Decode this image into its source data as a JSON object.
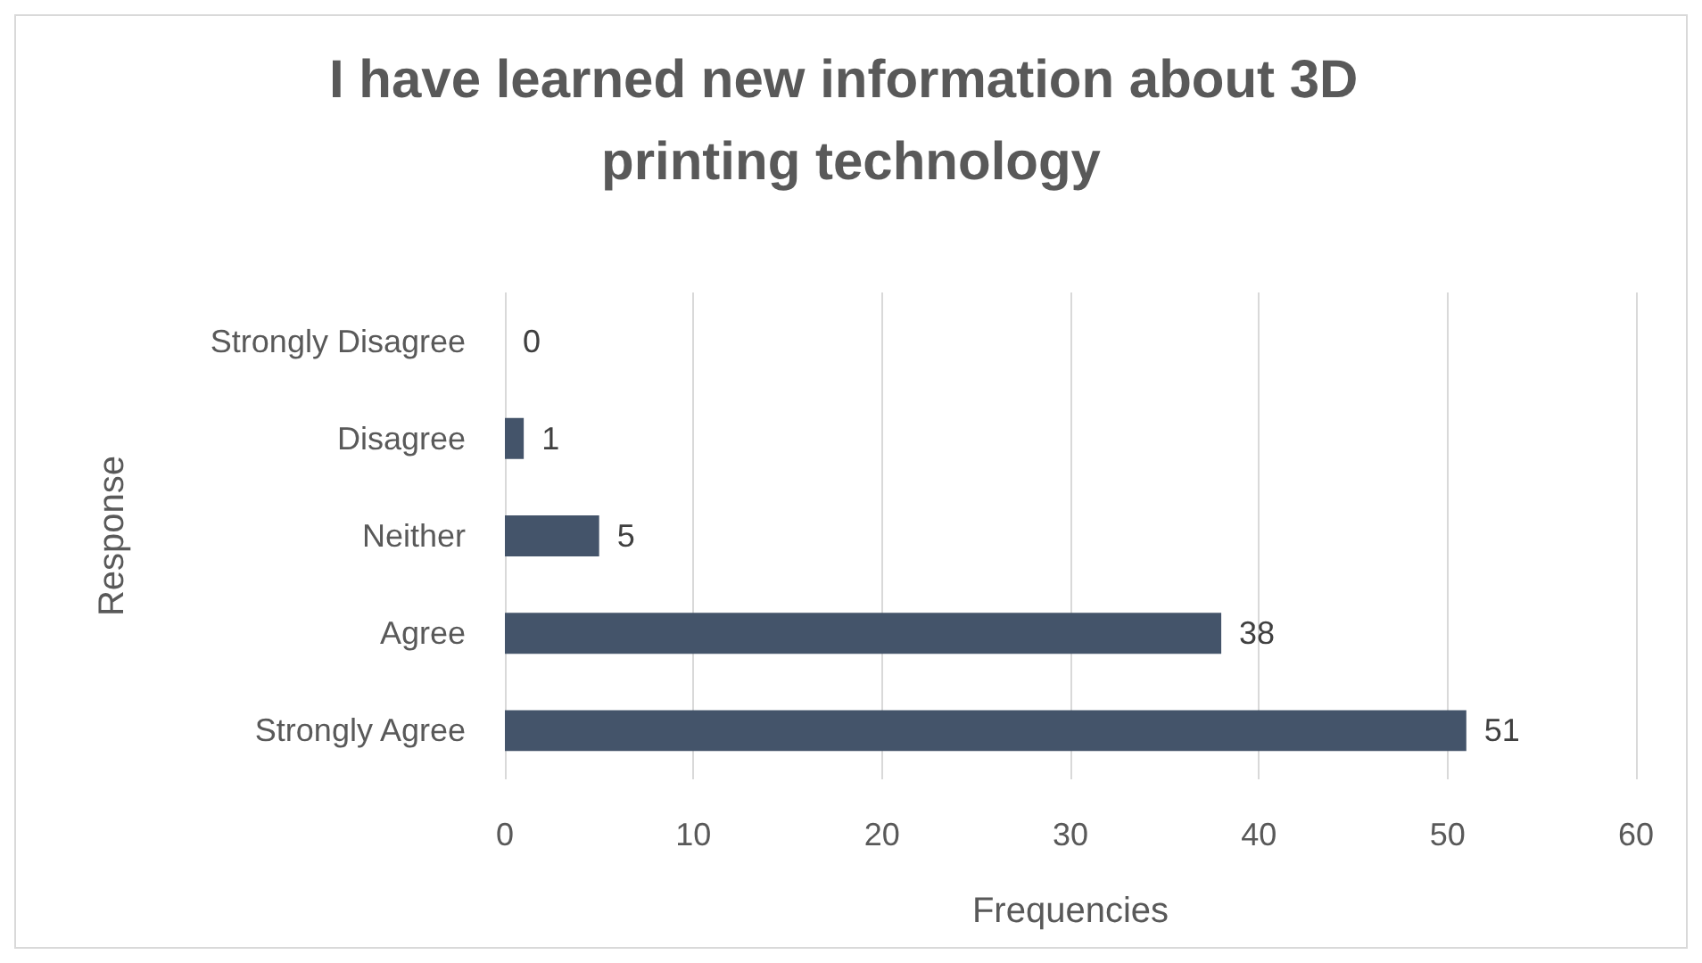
{
  "chart_data": {
    "type": "bar",
    "orientation": "horizontal",
    "title": "I have learned new information about 3D printing technology",
    "xlabel": "Frequencies",
    "ylabel": "Response",
    "categories": [
      "Strongly Disagree",
      "Disagree",
      "Neither",
      "Agree",
      "Strongly Agree"
    ],
    "values": [
      0,
      1,
      5,
      38,
      51
    ],
    "color": "#44546a",
    "xlim": [
      0,
      60
    ],
    "xticks": [
      0,
      10,
      20,
      30,
      40,
      50,
      60
    ],
    "grid": "x",
    "data_labels": true
  }
}
